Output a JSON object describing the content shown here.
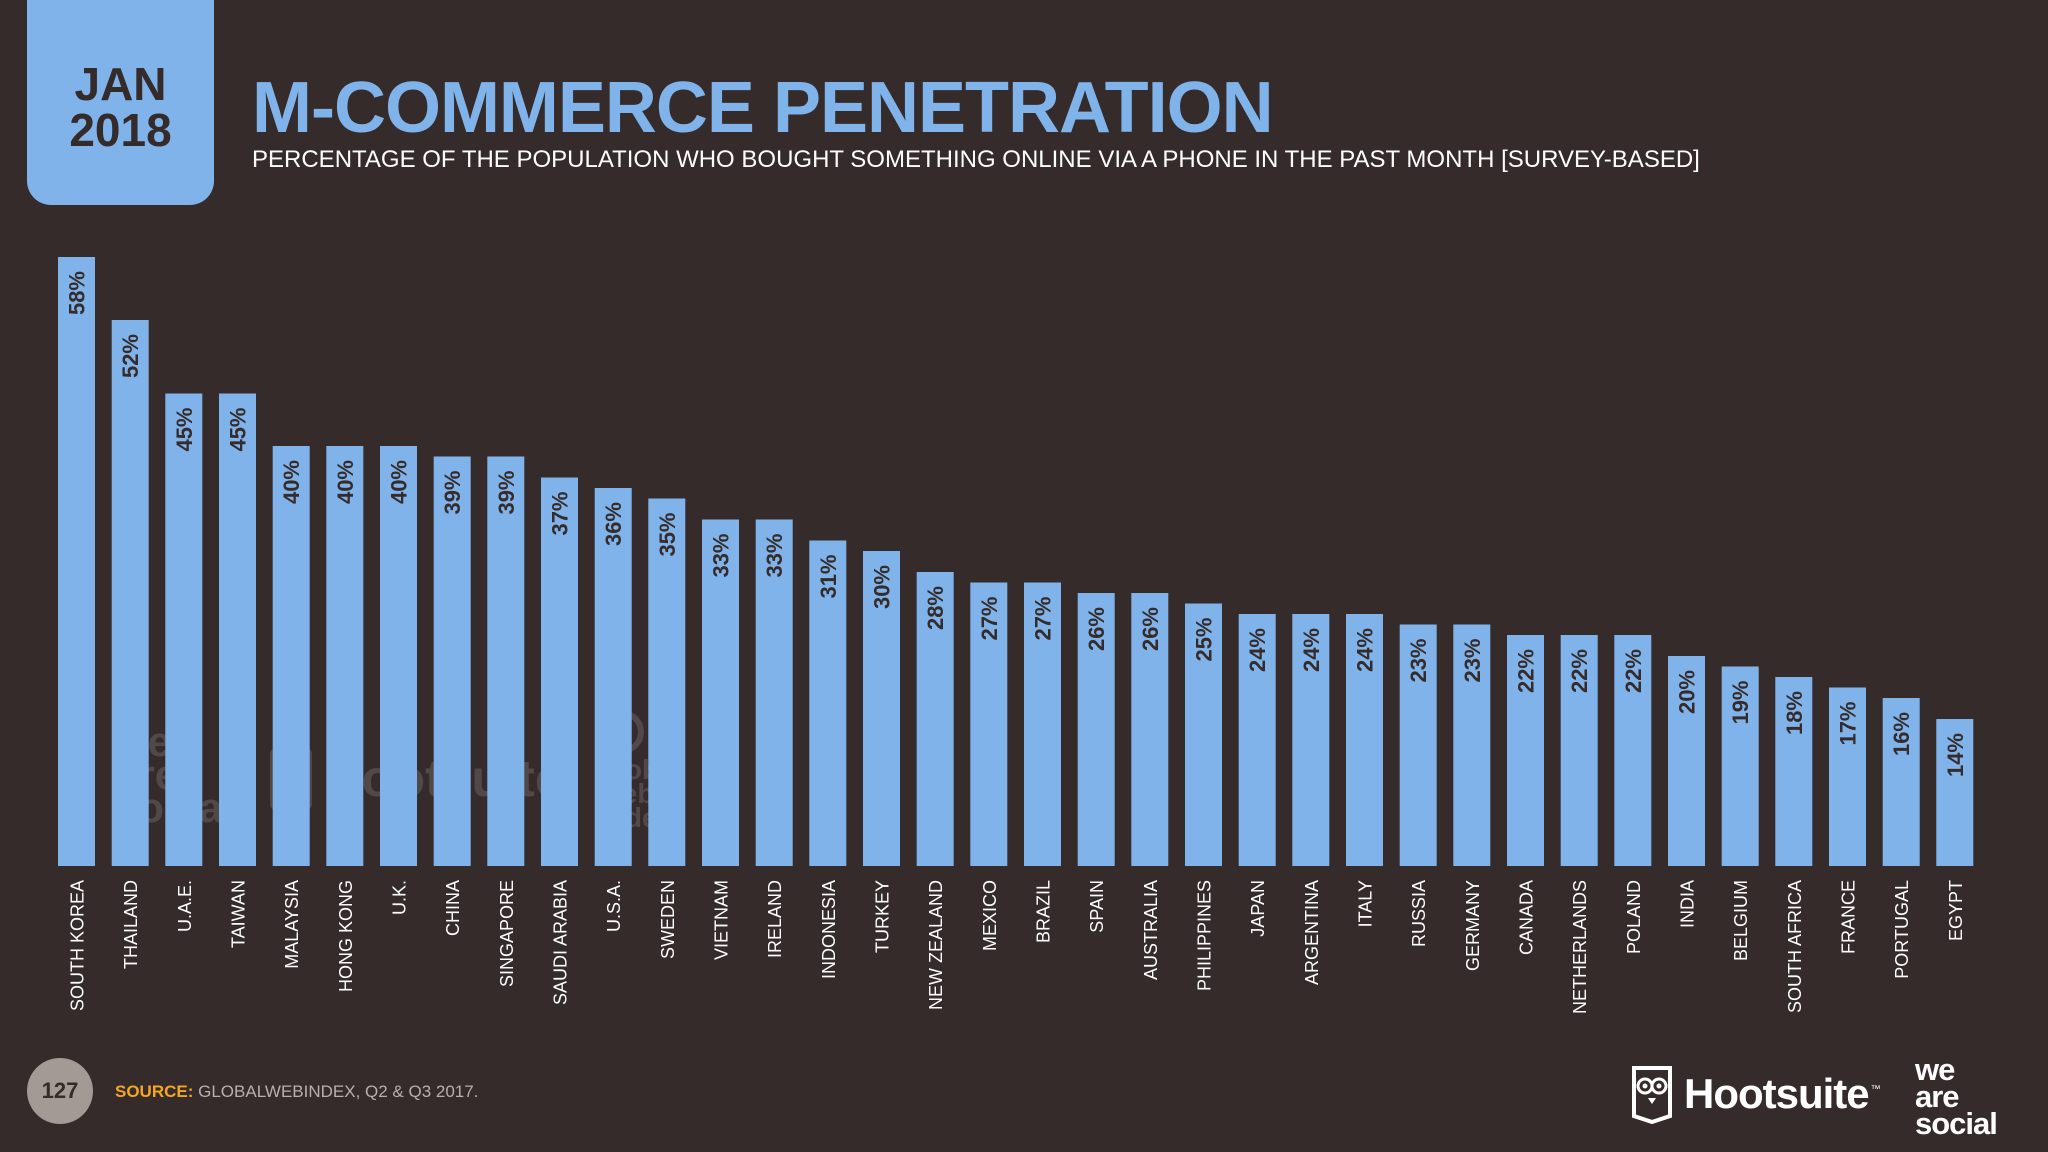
{
  "header": {
    "date_month": "JAN",
    "date_year": "2018",
    "title": "M-COMMERCE PENETRATION",
    "subtitle": "PERCENTAGE OF THE POPULATION WHO BOUGHT SOMETHING ONLINE VIA A PHONE IN THE PAST MONTH [SURVEY-BASED]"
  },
  "footer": {
    "page_number": "127",
    "source_label": "SOURCE:",
    "source_text": " GLOBALWEBINDEX, Q2 & Q3 2017.",
    "hootsuite_logo": "Hootsuite",
    "hootsuite_tm": "™",
    "was_line1": "we",
    "was_line2": "are",
    "was_line3": "social"
  },
  "watermarks": {
    "was_line1": "we",
    "was_line2": "are",
    "was_line3": "social",
    "hootsuite": "Hootsuite",
    "gwi_line1": "global",
    "gwi_line2": "web",
    "gwi_line3": "index"
  },
  "colors": {
    "background": "#352b2a",
    "bar": "#7fb3ea",
    "accent": "#f5a623",
    "text": "#ffffff",
    "label_on_bar": "#352b2a"
  },
  "chart_data": {
    "type": "bar",
    "orientation": "vertical",
    "value_suffix": "%",
    "ylim": [
      0,
      58
    ],
    "grid": false,
    "categories": [
      "SOUTH KOREA",
      "THAILAND",
      "U.A.E.",
      "TAIWAN",
      "MALAYSIA",
      "HONG KONG",
      "U.K.",
      "CHINA",
      "SINGAPORE",
      "SAUDI ARABIA",
      "U.S.A.",
      "SWEDEN",
      "VIETNAM",
      "IRELAND",
      "INDONESIA",
      "TURKEY",
      "NEW ZEALAND",
      "MEXICO",
      "BRAZIL",
      "SPAIN",
      "AUSTRALIA",
      "PHILIPPINES",
      "JAPAN",
      "ARGENTINA",
      "ITALY",
      "RUSSIA",
      "GERMANY",
      "CANADA",
      "NETHERLANDS",
      "POLAND",
      "INDIA",
      "BELGIUM",
      "SOUTH AFRICA",
      "FRANCE",
      "PORTUGAL",
      "EGYPT"
    ],
    "values": [
      58,
      52,
      45,
      45,
      40,
      40,
      40,
      39,
      39,
      37,
      36,
      35,
      33,
      33,
      31,
      30,
      28,
      27,
      27,
      26,
      26,
      25,
      24,
      24,
      24,
      23,
      23,
      22,
      22,
      22,
      20,
      19,
      18,
      17,
      16,
      14
    ]
  }
}
